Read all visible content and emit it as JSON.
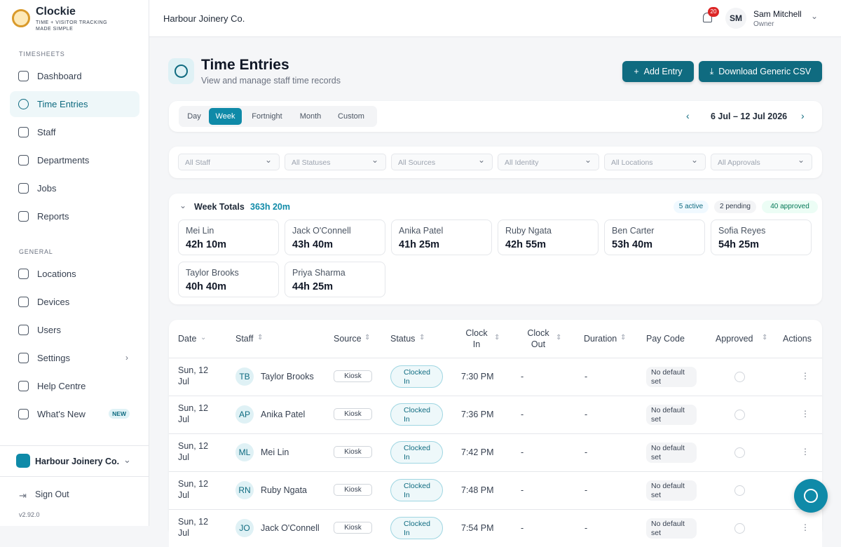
{
  "brand": {
    "name": "Clockie",
    "tagline": "TIME + VISITOR TRACKING MADE SIMPLE"
  },
  "sidebar": {
    "sections": [
      {
        "title": "TIMESHEETS",
        "items": [
          "Dashboard",
          "Time Entries",
          "Staff",
          "Departments",
          "Jobs",
          "Reports"
        ]
      },
      {
        "title": "GENERAL",
        "items": [
          "Locations",
          "Devices",
          "Users",
          "Settings",
          "Help Centre",
          "What's New"
        ]
      }
    ],
    "new_badge": "NEW",
    "org": "Harbour Joinery Co.",
    "sign_out": "Sign Out",
    "version": "v2.92.0"
  },
  "topbar": {
    "org": "Harbour Joinery Co.",
    "notifications": 20,
    "initials": "SM",
    "user": "Sam Mitchell",
    "role": "Owner"
  },
  "page": {
    "title": "Time Entries",
    "subtitle": "View and manage staff time records",
    "add": "Add Entry",
    "download": "Download Generic CSV"
  },
  "periods": [
    "Day",
    "Week",
    "Fortnight",
    "Month",
    "Custom"
  ],
  "date_range": "6 Jul – 12 Jul 2026",
  "filters": [
    "All Staff",
    "All Statuses",
    "All Sources",
    "All Identity",
    "All Locations",
    "All Approvals"
  ],
  "totals": {
    "label": "Week Totals",
    "total": "363h 20m",
    "badges": [
      "5 active",
      "2 pending",
      "40 approved"
    ],
    "staff": [
      {
        "name": "Mei Lin",
        "hours": "42h 10m"
      },
      {
        "name": "Jack O'Connell",
        "hours": "43h 40m"
      },
      {
        "name": "Anika Patel",
        "hours": "41h 25m"
      },
      {
        "name": "Ruby Ngata",
        "hours": "42h 55m"
      },
      {
        "name": "Ben Carter",
        "hours": "53h 40m"
      },
      {
        "name": "Sofia Reyes",
        "hours": "54h 25m"
      },
      {
        "name": "Taylor Brooks",
        "hours": "40h 40m"
      },
      {
        "name": "Priya Sharma",
        "hours": "44h 25m"
      }
    ]
  },
  "table": {
    "columns": [
      "Date",
      "Staff",
      "Source",
      "Status",
      "Clock In",
      "Clock Out",
      "Duration",
      "Pay Code",
      "Approved",
      "Actions"
    ],
    "rows": [
      {
        "date": "Sun, 12 Jul",
        "initials": "TB",
        "staff": "Taylor Brooks",
        "source": "Kiosk",
        "status": "Clocked In",
        "clock_in": "7:30 PM",
        "clock_out": "-",
        "duration": "-",
        "pay_code": "No default set"
      },
      {
        "date": "Sun, 12 Jul",
        "initials": "AP",
        "staff": "Anika Patel",
        "source": "Kiosk",
        "status": "Clocked In",
        "clock_in": "7:36 PM",
        "clock_out": "-",
        "duration": "-",
        "pay_code": "No default set"
      },
      {
        "date": "Sun, 12 Jul",
        "initials": "ML",
        "staff": "Mei Lin",
        "source": "Kiosk",
        "status": "Clocked In",
        "clock_in": "7:42 PM",
        "clock_out": "-",
        "duration": "-",
        "pay_code": "No default set"
      },
      {
        "date": "Sun, 12 Jul",
        "initials": "RN",
        "staff": "Ruby Ngata",
        "source": "Kiosk",
        "status": "Clocked In",
        "clock_in": "7:48 PM",
        "clock_out": "-",
        "duration": "-",
        "pay_code": "No default set"
      },
      {
        "date": "Sun, 12 Jul",
        "initials": "JO",
        "staff": "Jack O'Connell",
        "source": "Kiosk",
        "status": "Clocked In",
        "clock_in": "7:54 PM",
        "clock_out": "-",
        "duration": "-",
        "pay_code": "No default set"
      }
    ]
  }
}
